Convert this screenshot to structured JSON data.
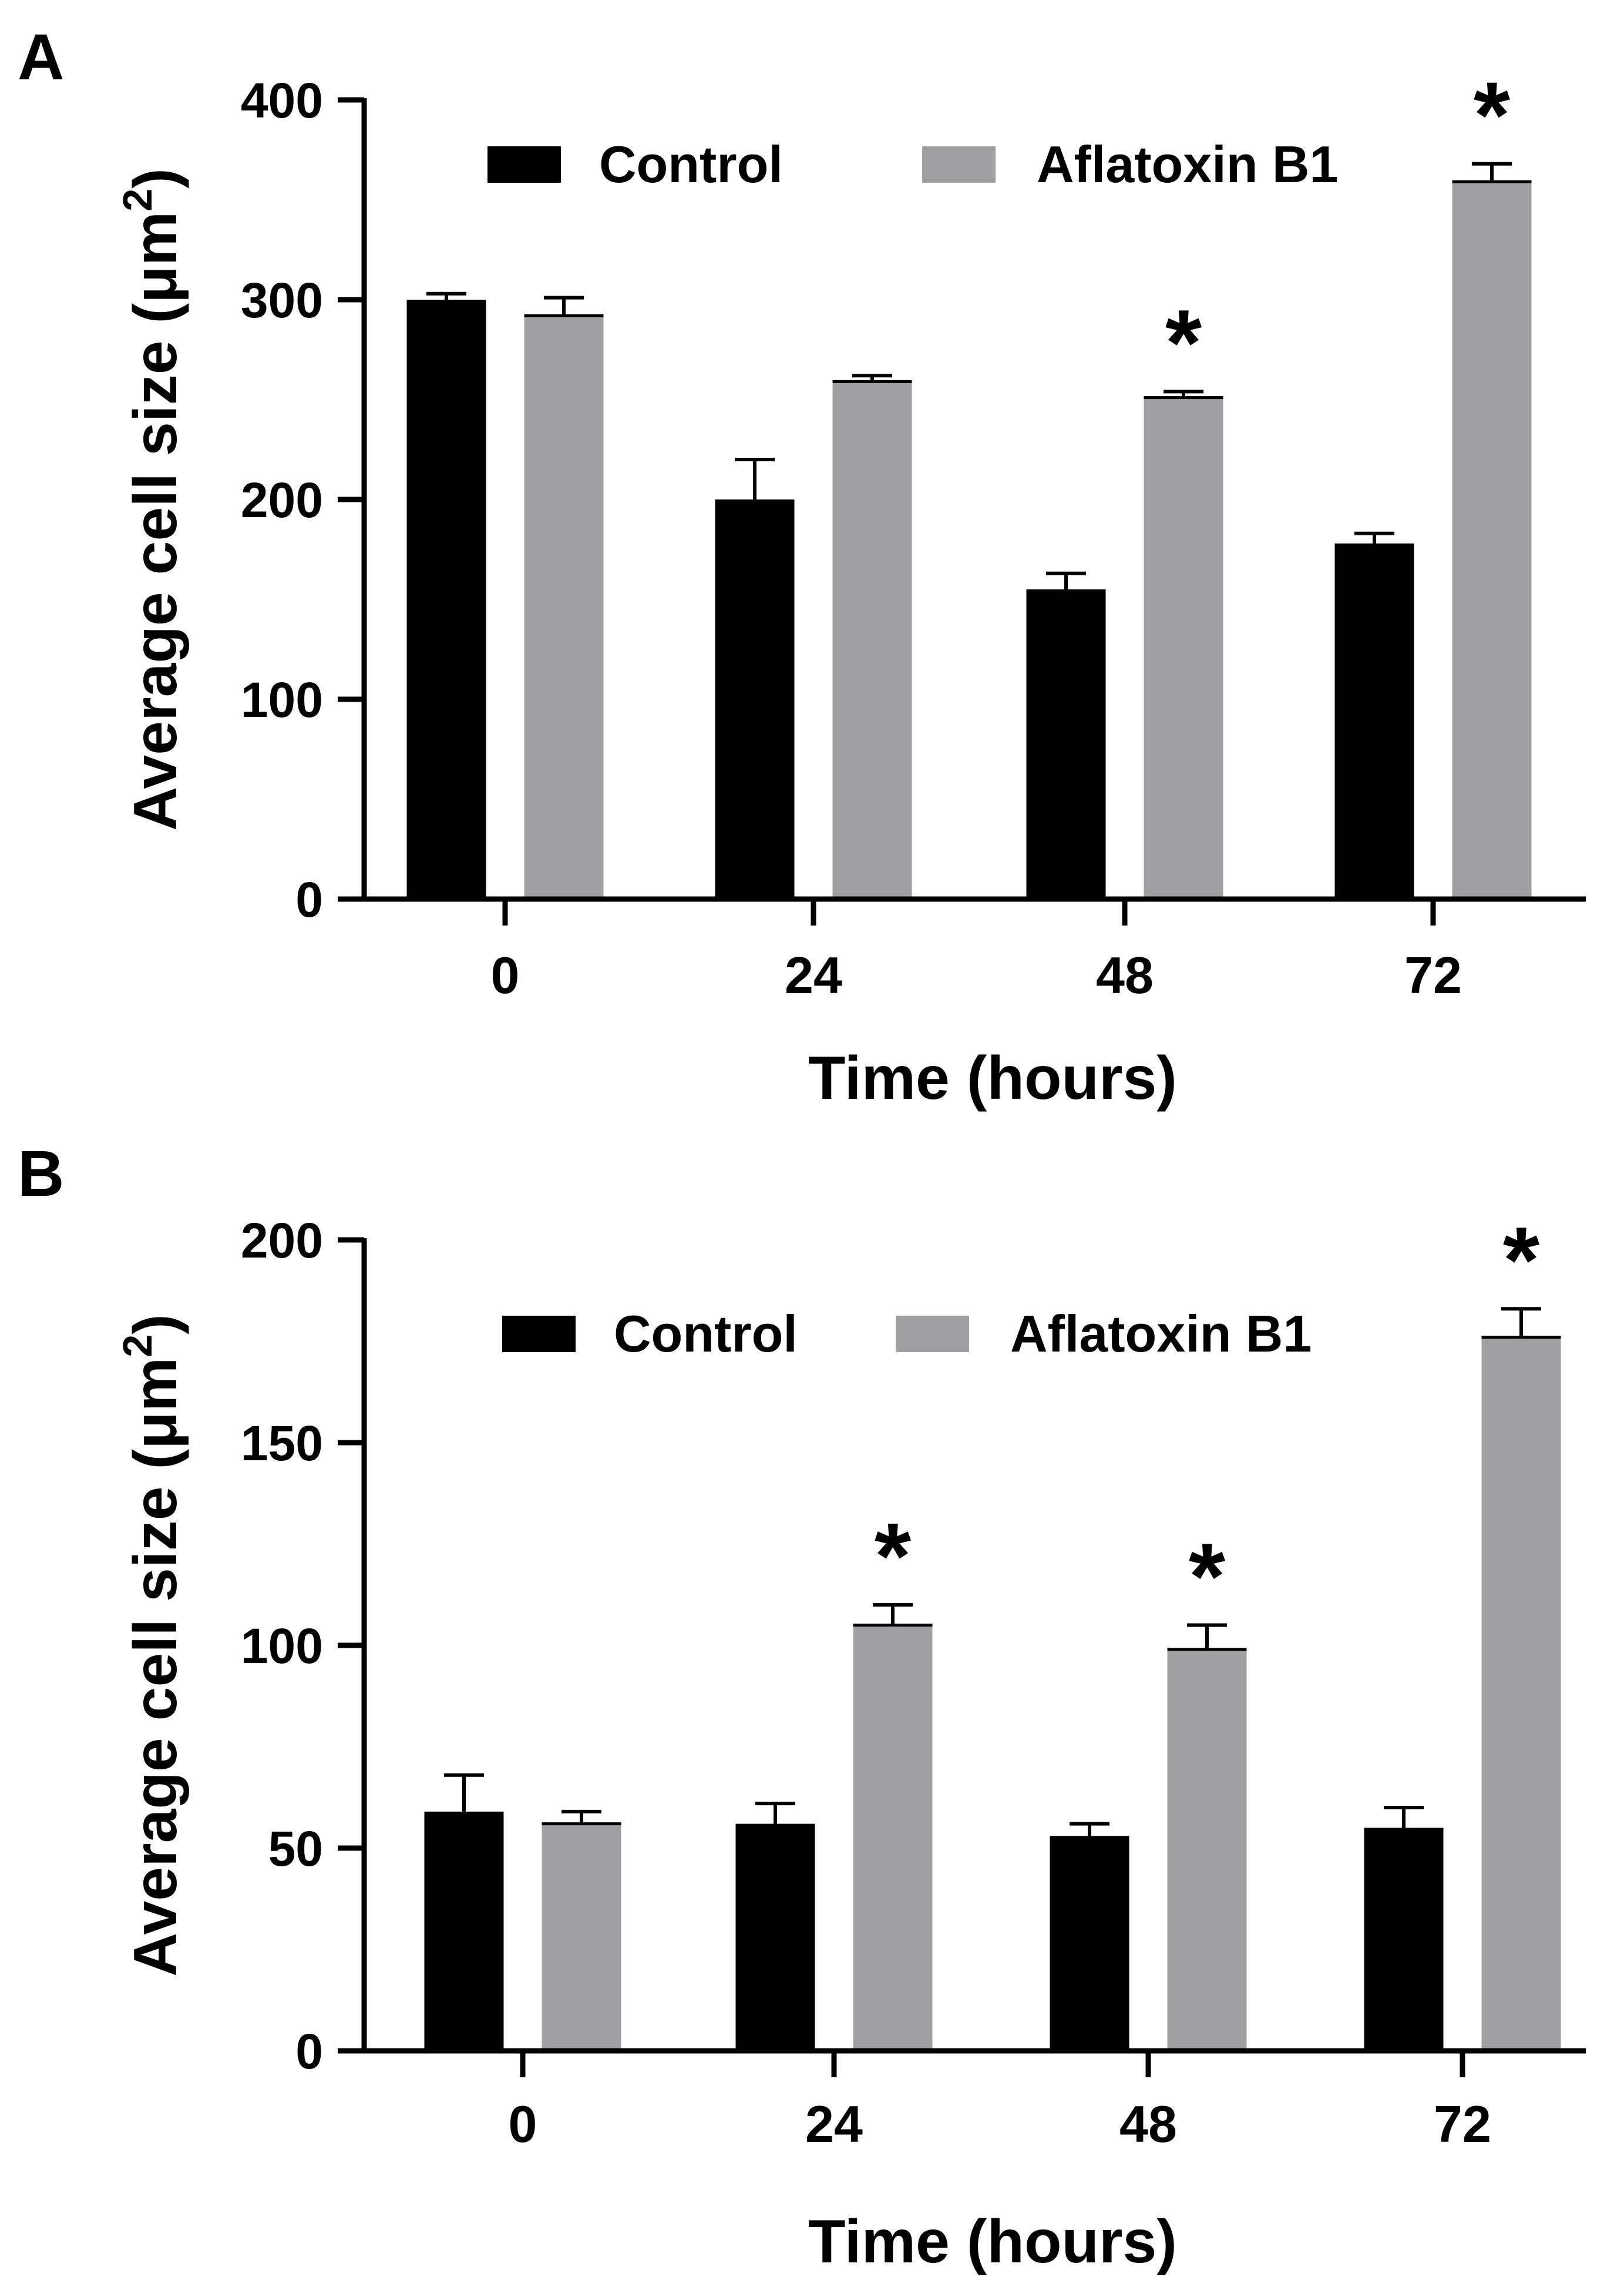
{
  "chart_data": [
    {
      "panel_label": "A",
      "type": "bar",
      "title": "",
      "xlabel": "Time (hours)",
      "ylabel": "Average cell size (μm",
      "ylabel_superscript": "2",
      "ylabel_close": ")",
      "categories": [
        "0",
        "24",
        "48",
        "72"
      ],
      "ylim": [
        0,
        400
      ],
      "yticks": [
        0,
        100,
        200,
        300,
        400
      ],
      "legend_position": "top",
      "series": [
        {
          "name": "Control",
          "color": "#000000",
          "values": [
            300,
            200,
            155,
            178
          ],
          "errors": [
            3,
            20,
            8,
            5
          ],
          "significant": [
            false,
            false,
            false,
            false
          ]
        },
        {
          "name": "Aflatoxin B1",
          "color": "#a0a0a3",
          "values": [
            292,
            259,
            251,
            359
          ],
          "errors": [
            9,
            3,
            3,
            9
          ],
          "significant": [
            false,
            false,
            true,
            true
          ]
        }
      ],
      "significance_marker": "*"
    },
    {
      "panel_label": "B",
      "type": "bar",
      "title": "",
      "xlabel": "Time (hours)",
      "ylabel": "Average cell size (μm",
      "ylabel_superscript": "2",
      "ylabel_close": ")",
      "categories": [
        "0",
        "24",
        "48",
        "72"
      ],
      "ylim": [
        0,
        200
      ],
      "yticks": [
        0,
        50,
        100,
        150,
        200
      ],
      "legend_position": "top",
      "series": [
        {
          "name": "Control",
          "color": "#000000",
          "values": [
            59,
            56,
            53,
            55
          ],
          "errors": [
            9,
            5,
            3,
            5
          ],
          "significant": [
            false,
            false,
            false,
            false
          ]
        },
        {
          "name": "Aflatoxin B1",
          "color": "#a0a0a3",
          "values": [
            56,
            105,
            99,
            176
          ],
          "errors": [
            3,
            5,
            6,
            7
          ],
          "significant": [
            false,
            true,
            true,
            true
          ]
        }
      ],
      "significance_marker": "*"
    }
  ]
}
